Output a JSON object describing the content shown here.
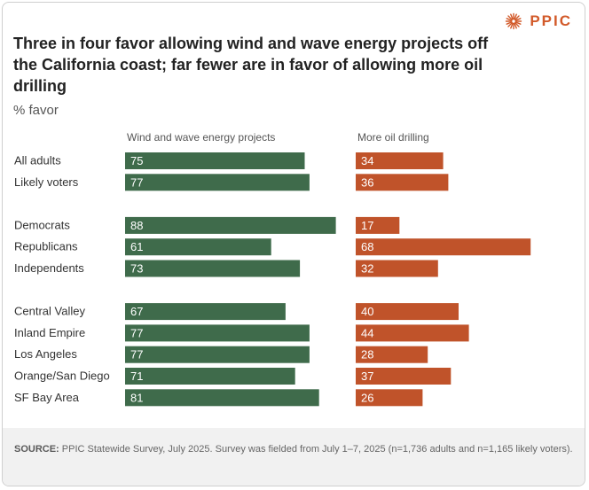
{
  "logo": {
    "text": "PPIC",
    "icon": "sunburst-icon",
    "color": "#d25a2a"
  },
  "title": "Three in four favor allowing wind and wave energy projects off the California coast; far fewer are in favor of allowing more oil drilling",
  "subtitle": "% favor",
  "chart_data": {
    "type": "bar",
    "orientation": "horizontal",
    "title": "Three in four favor allowing wind and wave energy projects off the California coast; far fewer are in favor of allowing more oil drilling",
    "subtitle": "% favor",
    "xlabel": "",
    "ylabel": "",
    "xlim": [
      0,
      100
    ],
    "grid": false,
    "legend": "none",
    "categories": [
      "All adults",
      "Likely voters",
      "Democrats",
      "Republicans",
      "Independents",
      "Central Valley",
      "Inland Empire",
      "Los Angeles",
      "Orange/San Diego",
      "SF Bay Area"
    ],
    "groups": [
      [
        "All adults",
        "Likely voters"
      ],
      [
        "Democrats",
        "Republicans",
        "Independents"
      ],
      [
        "Central Valley",
        "Inland Empire",
        "Los Angeles",
        "Orange/San Diego",
        "SF Bay Area"
      ]
    ],
    "series": [
      {
        "name": "Wind and wave energy projects",
        "color": "#3f6b4b",
        "values": [
          75,
          77,
          88,
          61,
          73,
          67,
          77,
          77,
          71,
          81
        ]
      },
      {
        "name": "More oil drilling",
        "color": "#c0532a",
        "values": [
          34,
          36,
          17,
          68,
          32,
          40,
          44,
          28,
          37,
          26
        ]
      }
    ]
  },
  "footer": {
    "source_label": "SOURCE:",
    "source_text": "PPIC Statewide Survey, July 2025. Survey was fielded from July 1–7, 2025 (n=1,736 adults and n=1,165 likely voters)."
  }
}
